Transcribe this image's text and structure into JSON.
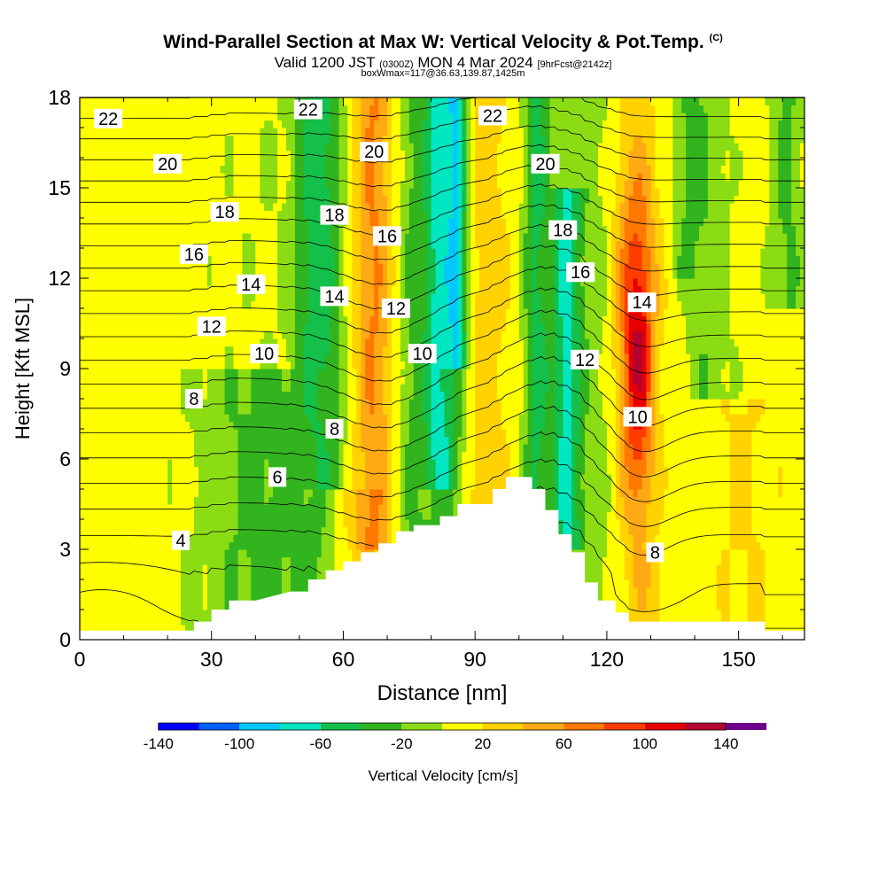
{
  "title": {
    "main": "Wind-Parallel Section at Max W: Vertical Velocity & Pot.Temp.",
    "main_suffix": "(C)",
    "valid_prefix": "Valid 1200 JST",
    "valid_utc": "(0300Z)",
    "valid_date": "MON 4 Mar 2024",
    "forecast": "[9hrFcst@2142z]",
    "box": "boxWmax=117@36.63,139.87,1425m"
  },
  "chart_data": {
    "type": "heatmap",
    "xlabel": "Distance [nm]",
    "ylabel": "Height [Kft MSL]",
    "xlim": [
      0,
      165
    ],
    "ylim": [
      0,
      18
    ],
    "x_ticks": [
      0,
      30,
      60,
      90,
      120,
      150
    ],
    "y_ticks": [
      0,
      3,
      6,
      9,
      12,
      15,
      18
    ],
    "colorbar": {
      "label": "Vertical Velocity [cm/s]",
      "range": [
        -160,
        160
      ],
      "step": 20,
      "tick_labels": [
        "-140",
        "-100",
        "-60",
        "-20",
        "20",
        "60",
        "100",
        "140"
      ],
      "tick_values": [
        -140,
        -100,
        -60,
        -20,
        20,
        60,
        100,
        140
      ],
      "colors": [
        "#0000ff",
        "#0060ff",
        "#00c8ff",
        "#00e6c0",
        "#14c04a",
        "#32b41e",
        "#8cdc14",
        "#ffff00",
        "#ffd200",
        "#ffaa14",
        "#ff7800",
        "#ff3c00",
        "#e60000",
        "#b40032",
        "#6e008c"
      ]
    },
    "terrain": [
      [
        0,
        0.3
      ],
      [
        26,
        0.3
      ],
      [
        26,
        0.6
      ],
      [
        30,
        0.6
      ],
      [
        30,
        1.0
      ],
      [
        34,
        1.0
      ],
      [
        34,
        1.3
      ],
      [
        40,
        1.3
      ],
      [
        48,
        1.6
      ],
      [
        52,
        1.6
      ],
      [
        52,
        2.0
      ],
      [
        56,
        2.0
      ],
      [
        56,
        2.3
      ],
      [
        60,
        2.3
      ],
      [
        60,
        2.6
      ],
      [
        64,
        2.6
      ],
      [
        64,
        2.9
      ],
      [
        68,
        2.9
      ],
      [
        68,
        3.2
      ],
      [
        72,
        3.2
      ],
      [
        72,
        3.6
      ],
      [
        76,
        3.6
      ],
      [
        76,
        3.8
      ],
      [
        82,
        3.8
      ],
      [
        82,
        4.1
      ],
      [
        86,
        4.1
      ],
      [
        86,
        4.5
      ],
      [
        94,
        4.5
      ],
      [
        94,
        5.0
      ],
      [
        97,
        5.0
      ],
      [
        97,
        5.4
      ],
      [
        103,
        5.4
      ],
      [
        103,
        5.0
      ],
      [
        106,
        5.0
      ],
      [
        106,
        4.3
      ],
      [
        109,
        4.3
      ],
      [
        109,
        3.5
      ],
      [
        112,
        3.5
      ],
      [
        112,
        2.9
      ],
      [
        115,
        2.9
      ],
      [
        115,
        1.9
      ],
      [
        118,
        1.9
      ],
      [
        118,
        1.3
      ],
      [
        122,
        1.3
      ],
      [
        122,
        0.9
      ],
      [
        125,
        0.9
      ],
      [
        125,
        0.6
      ],
      [
        156,
        0.6
      ],
      [
        156,
        0.3
      ],
      [
        165,
        0.3
      ]
    ],
    "contour_labels": [
      {
        "text": "22",
        "x": 6.5,
        "y": 17.3
      },
      {
        "text": "22",
        "x": 52,
        "y": 17.6
      },
      {
        "text": "22",
        "x": 94,
        "y": 17.4
      },
      {
        "text": "20",
        "x": 20,
        "y": 15.8
      },
      {
        "text": "20",
        "x": 67,
        "y": 16.2
      },
      {
        "text": "20",
        "x": 106,
        "y": 15.8
      },
      {
        "text": "18",
        "x": 33,
        "y": 14.2
      },
      {
        "text": "18",
        "x": 58,
        "y": 14.1
      },
      {
        "text": "18",
        "x": 110,
        "y": 13.6
      },
      {
        "text": "16",
        "x": 26,
        "y": 12.8
      },
      {
        "text": "16",
        "x": 70,
        "y": 13.4
      },
      {
        "text": "16",
        "x": 114,
        "y": 12.2
      },
      {
        "text": "14",
        "x": 39,
        "y": 11.8
      },
      {
        "text": "14",
        "x": 58,
        "y": 11.4
      },
      {
        "text": "14",
        "x": 128,
        "y": 11.2
      },
      {
        "text": "12",
        "x": 30,
        "y": 10.4
      },
      {
        "text": "12",
        "x": 72,
        "y": 11.0
      },
      {
        "text": "12",
        "x": 115,
        "y": 9.3
      },
      {
        "text": "10",
        "x": 42,
        "y": 9.5
      },
      {
        "text": "10",
        "x": 78,
        "y": 9.5
      },
      {
        "text": "10",
        "x": 127,
        "y": 7.4
      },
      {
        "text": "8",
        "x": 26,
        "y": 8.0
      },
      {
        "text": "8",
        "x": 58,
        "y": 7.0
      },
      {
        "text": "8",
        "x": 131,
        "y": 2.9
      },
      {
        "text": "6",
        "x": 45,
        "y": 5.4
      },
      {
        "text": "4",
        "x": 23,
        "y": 3.3
      }
    ]
  }
}
